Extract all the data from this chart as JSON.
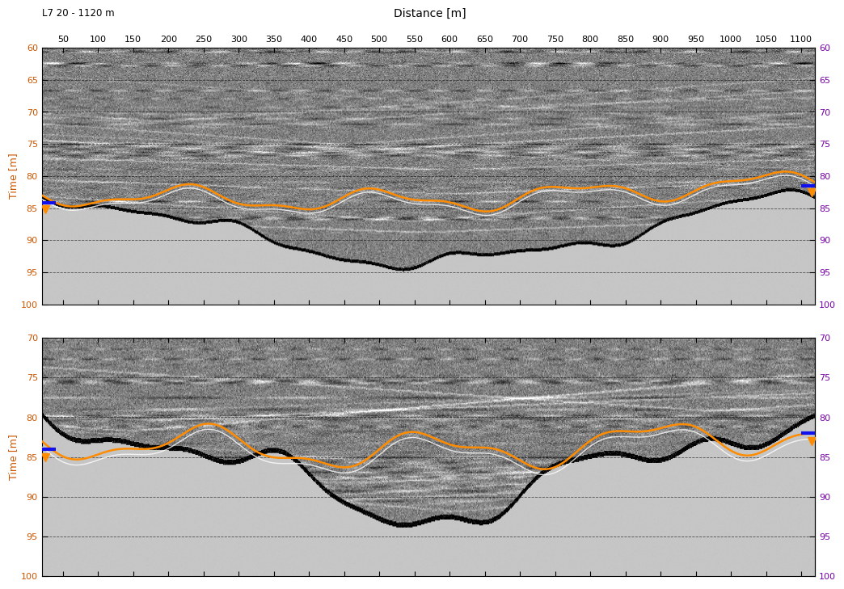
{
  "title": "Distance [m]",
  "label_top": "L7 20 - 1120 m",
  "x_ticks": [
    50,
    100,
    150,
    200,
    250,
    300,
    350,
    400,
    450,
    500,
    550,
    600,
    650,
    700,
    750,
    800,
    850,
    900,
    950,
    1000,
    1050,
    1100
  ],
  "x_min": 20,
  "x_max": 1120,
  "y1_min": 60,
  "y1_max": 100,
  "y2_min": 70,
  "y2_max": 100,
  "y1_ticks": [
    60,
    65,
    70,
    75,
    80,
    85,
    90,
    95,
    100
  ],
  "y2_ticks": [
    70,
    75,
    80,
    85,
    90,
    95,
    100
  ],
  "ylabel": "Time [m]",
  "orange_color": "#ff8c00",
  "blue_color": "#1010ee",
  "axis_color_left": "#cc5500",
  "axis_color_right": "#7700aa",
  "figure_bg": "#ffffff",
  "gray_air": 0.82,
  "gpr_noise_std": 0.45
}
